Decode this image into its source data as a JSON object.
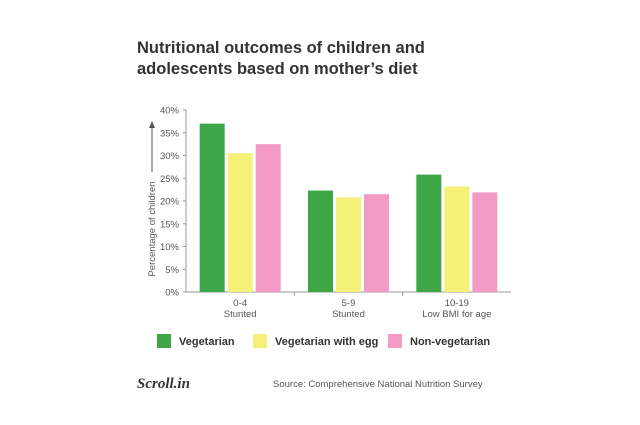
{
  "title_lines": [
    "Nutritional outcomes of children and",
    "adolescents based on mother’s diet"
  ],
  "source": "Source:  Comprehensive National Nutrition Survey",
  "logo": "Scroll.in",
  "colors": {
    "Vegetarian": "#3fa648",
    "Vegetarian with egg": "#f5f078",
    "Non-vegetarian": "#f39bc4"
  },
  "chart_data": {
    "type": "bar",
    "title": "Nutritional outcomes of children and adolescents based on mother’s diet",
    "ylabel": "Percentage of children",
    "xlabel": "",
    "ylim": [
      0,
      40
    ],
    "yticks": [
      "0%",
      "5%",
      "10%",
      "15%",
      "20%",
      "25%",
      "30%",
      "35%",
      "40%"
    ],
    "categories": [
      {
        "line1": "0-4",
        "line2": "Stunted"
      },
      {
        "line1": "5-9",
        "line2": "Stunted"
      },
      {
        "line1": "10-19",
        "line2": "Low BMI for age"
      }
    ],
    "series": [
      {
        "name": "Vegetarian",
        "values": [
          37,
          22.3,
          25.8
        ]
      },
      {
        "name": "Vegetarian with egg",
        "values": [
          30.5,
          20.8,
          23.2
        ]
      },
      {
        "name": "Non-vegetarian",
        "values": [
          32.5,
          21.5,
          21.9
        ]
      }
    ],
    "grid": false,
    "legend_position": "bottom"
  }
}
